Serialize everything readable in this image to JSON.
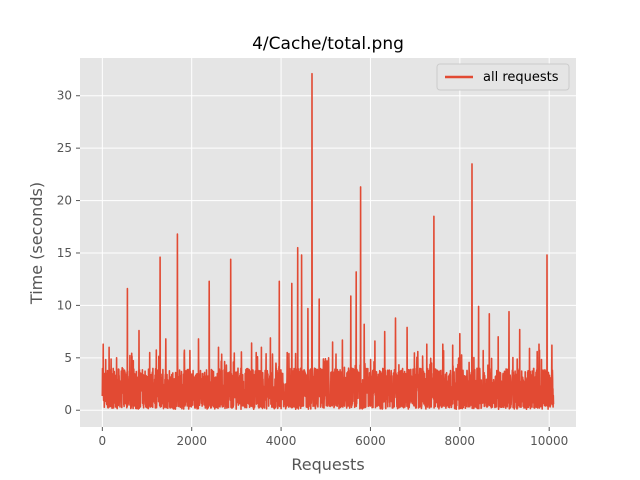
{
  "chart_data": {
    "type": "line",
    "title": "4/Cache/total.png",
    "xlabel": "Requests",
    "ylabel": "Time (seconds)",
    "xlim": [
      -500,
      10600
    ],
    "ylim": [
      -1.6,
      33.6
    ],
    "xticks": [
      0,
      2000,
      4000,
      6000,
      8000,
      10000
    ],
    "yticks": [
      0,
      5,
      10,
      15,
      20,
      25,
      30
    ],
    "grid": true,
    "legend": {
      "position": "top-right"
    },
    "colors": {
      "series": "#e24a33",
      "background": "#e5e5e5"
    },
    "series": [
      {
        "name": "all requests",
        "note_approximate": "dense noisy series ~10100 points; baseline mostly 0-4 s with peaks listed",
        "n_points": 10100,
        "baseline_range": [
          0,
          4
        ],
        "peaks": [
          [
            20,
            6.3
          ],
          [
            150,
            6.0
          ],
          [
            320,
            5.0
          ],
          [
            560,
            11.6
          ],
          [
            820,
            7.6
          ],
          [
            1060,
            5.5
          ],
          [
            1290,
            14.6
          ],
          [
            1420,
            6.8
          ],
          [
            1680,
            16.8
          ],
          [
            1960,
            5.7
          ],
          [
            2150,
            6.8
          ],
          [
            2390,
            12.3
          ],
          [
            2600,
            6.0
          ],
          [
            2870,
            14.4
          ],
          [
            3100,
            4.0
          ],
          [
            3340,
            6.4
          ],
          [
            3560,
            6.0
          ],
          [
            3760,
            6.9
          ],
          [
            3960,
            12.3
          ],
          [
            4240,
            12.1
          ],
          [
            4370,
            15.5
          ],
          [
            4460,
            14.8
          ],
          [
            4600,
            9.7
          ],
          [
            4690,
            32.1
          ],
          [
            4850,
            10.6
          ],
          [
            5150,
            6.5
          ],
          [
            5370,
            6.7
          ],
          [
            5560,
            10.9
          ],
          [
            5680,
            13.2
          ],
          [
            5780,
            21.3
          ],
          [
            5860,
            8.2
          ],
          [
            6100,
            6.6
          ],
          [
            6320,
            7.5
          ],
          [
            6560,
            8.8
          ],
          [
            6820,
            7.9
          ],
          [
            7060,
            5.6
          ],
          [
            7260,
            6.3
          ],
          [
            7420,
            18.5
          ],
          [
            7620,
            6.3
          ],
          [
            7840,
            6.2
          ],
          [
            8000,
            7.3
          ],
          [
            8270,
            23.5
          ],
          [
            8420,
            9.9
          ],
          [
            8660,
            9.2
          ],
          [
            8860,
            7.0
          ],
          [
            9100,
            9.4
          ],
          [
            9340,
            7.7
          ],
          [
            9560,
            5.9
          ],
          [
            9770,
            6.3
          ],
          [
            9950,
            14.8
          ],
          [
            10060,
            6.2
          ]
        ]
      }
    ]
  }
}
